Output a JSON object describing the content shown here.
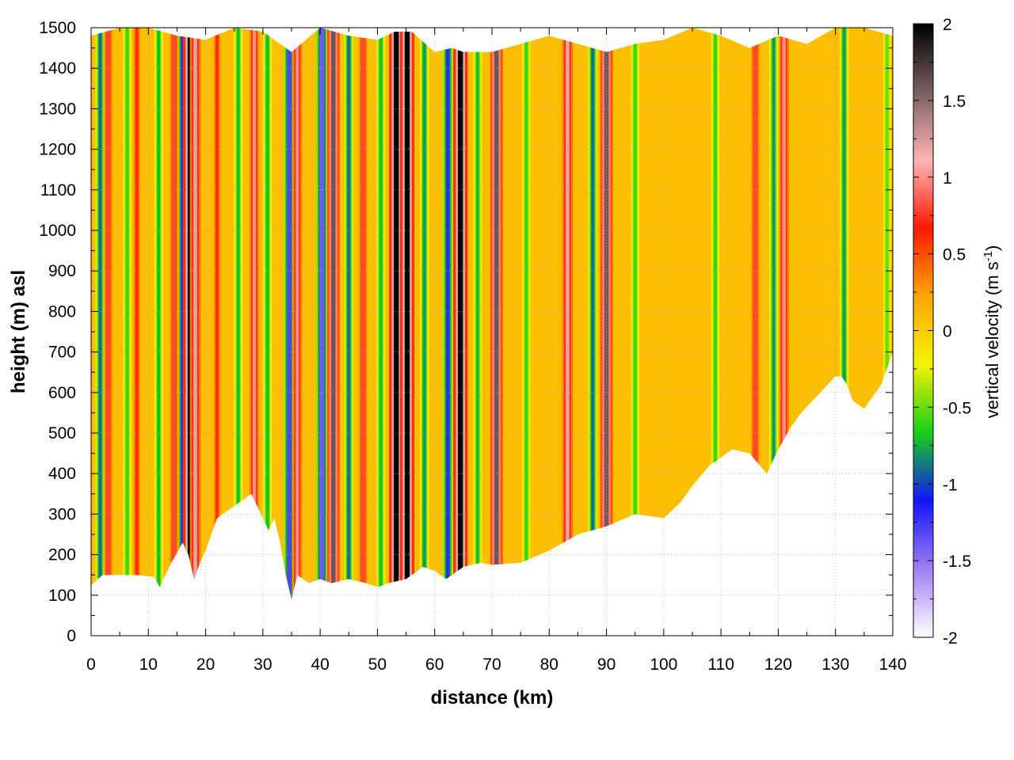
{
  "chart_data": {
    "type": "heatmap",
    "title": "",
    "xlabel": "distance (km)",
    "ylabel": "height (m) asl",
    "xlim": [
      0,
      140
    ],
    "ylim": [
      0,
      1500
    ],
    "x_ticks": [
      0,
      10,
      20,
      30,
      40,
      50,
      60,
      70,
      80,
      90,
      100,
      110,
      120,
      130,
      140
    ],
    "y_ticks": [
      0,
      100,
      200,
      300,
      400,
      500,
      600,
      700,
      800,
      900,
      1000,
      1100,
      1200,
      1300,
      1400,
      1500
    ],
    "colorbar": {
      "label_main": "vertical velocity (m s",
      "label_sup": "-1",
      "label_close": ")",
      "range": [
        -2,
        2
      ],
      "ticks": [
        -2,
        -1.5,
        -1,
        -0.5,
        0,
        0.5,
        1,
        1.5,
        2
      ],
      "tick_labels": [
        "-2",
        "-1.5",
        "-1",
        "-0.5",
        "0",
        "0.5",
        "1",
        "1.5",
        "2"
      ],
      "colors": [
        "#ffffff",
        "#a07ef5",
        "#1414ff",
        "#16d016",
        "#f2f200",
        "#ffa500",
        "#ff1a00",
        "#ffb4b4",
        "#7a6060",
        "#000000"
      ]
    },
    "grid": "dotted",
    "terrain_profile": {
      "distance_km": [
        0,
        2,
        5,
        8,
        11,
        12,
        14,
        16,
        17,
        18,
        19,
        20,
        22,
        25,
        28,
        30,
        31,
        32,
        33,
        34,
        35,
        36,
        38,
        40,
        42,
        45,
        48,
        50,
        52,
        55,
        58,
        60,
        62,
        65,
        68,
        70,
        75,
        80,
        85,
        90,
        95,
        100,
        103,
        105,
        108,
        110,
        112,
        115,
        118,
        120,
        122,
        124,
        126,
        128,
        130,
        131,
        132,
        133,
        135,
        138,
        140
      ],
      "height_m": [
        125,
        150,
        150,
        150,
        145,
        120,
        180,
        230,
        200,
        140,
        180,
        210,
        290,
        320,
        350,
        290,
        260,
        290,
        230,
        150,
        90,
        150,
        130,
        140,
        130,
        140,
        130,
        120,
        130,
        140,
        170,
        160,
        140,
        170,
        180,
        175,
        180,
        210,
        250,
        270,
        300,
        290,
        330,
        370,
        420,
        440,
        460,
        450,
        400,
        460,
        510,
        550,
        580,
        610,
        640,
        640,
        620,
        580,
        560,
        620,
        700
      ]
    },
    "top_profile": {
      "distance_km": [
        0,
        5,
        10,
        15,
        20,
        25,
        30,
        35,
        40,
        45,
        50,
        53,
        56,
        60,
        63,
        65,
        70,
        75,
        80,
        85,
        90,
        95,
        100,
        105,
        110,
        115,
        120,
        125,
        130,
        135,
        140
      ],
      "height_m": [
        1480,
        1500,
        1500,
        1480,
        1470,
        1500,
        1490,
        1440,
        1500,
        1480,
        1470,
        1490,
        1490,
        1440,
        1450,
        1440,
        1440,
        1460,
        1480,
        1460,
        1440,
        1460,
        1470,
        1500,
        1480,
        1450,
        1480,
        1460,
        1500,
        1500,
        1480
      ]
    },
    "updraft_columns_w_ms": [
      {
        "x_km": 3.0,
        "w": 0.8
      },
      {
        "x_km": 8.0,
        "w": 0.6
      },
      {
        "x_km": 14.5,
        "w": 0.8
      },
      {
        "x_km": 17.3,
        "w": 2.0
      },
      {
        "x_km": 18.2,
        "w": 1.2
      },
      {
        "x_km": 22.0,
        "w": 0.6
      },
      {
        "x_km": 28.5,
        "w": 1.0
      },
      {
        "x_km": 36.0,
        "w": 1.0
      },
      {
        "x_km": 42.3,
        "w": 1.6
      },
      {
        "x_km": 47.5,
        "w": 0.8
      },
      {
        "x_km": 53.3,
        "w": 2.0
      },
      {
        "x_km": 55.2,
        "w": 2.0
      },
      {
        "x_km": 64.5,
        "w": 2.0
      },
      {
        "x_km": 70.8,
        "w": 1.6
      },
      {
        "x_km": 83.2,
        "w": 1.2
      },
      {
        "x_km": 90.0,
        "w": 1.6
      },
      {
        "x_km": 116.0,
        "w": 0.8
      },
      {
        "x_km": 121.0,
        "w": 1.0
      }
    ],
    "downdraft_columns_w_ms": [
      {
        "x_km": 1.6,
        "w": -0.9
      },
      {
        "x_km": 6.3,
        "w": -0.6
      },
      {
        "x_km": 11.8,
        "w": -0.7
      },
      {
        "x_km": 16.0,
        "w": -1.2
      },
      {
        "x_km": 25.7,
        "w": -0.7
      },
      {
        "x_km": 30.8,
        "w": -0.7
      },
      {
        "x_km": 34.6,
        "w": -1.3
      },
      {
        "x_km": 40.3,
        "w": -1.4
      },
      {
        "x_km": 45.0,
        "w": -0.9
      },
      {
        "x_km": 50.6,
        "w": -0.7
      },
      {
        "x_km": 58.2,
        "w": -0.8
      },
      {
        "x_km": 62.3,
        "w": -1.2
      },
      {
        "x_km": 67.5,
        "w": -0.7
      },
      {
        "x_km": 76.0,
        "w": -0.6
      },
      {
        "x_km": 87.6,
        "w": -0.9
      },
      {
        "x_km": 95.0,
        "w": -0.6
      },
      {
        "x_km": 109.0,
        "w": -0.6
      },
      {
        "x_km": 119.2,
        "w": -0.8
      },
      {
        "x_km": 131.5,
        "w": -0.8
      },
      {
        "x_km": 139.0,
        "w": -0.5
      }
    ]
  }
}
